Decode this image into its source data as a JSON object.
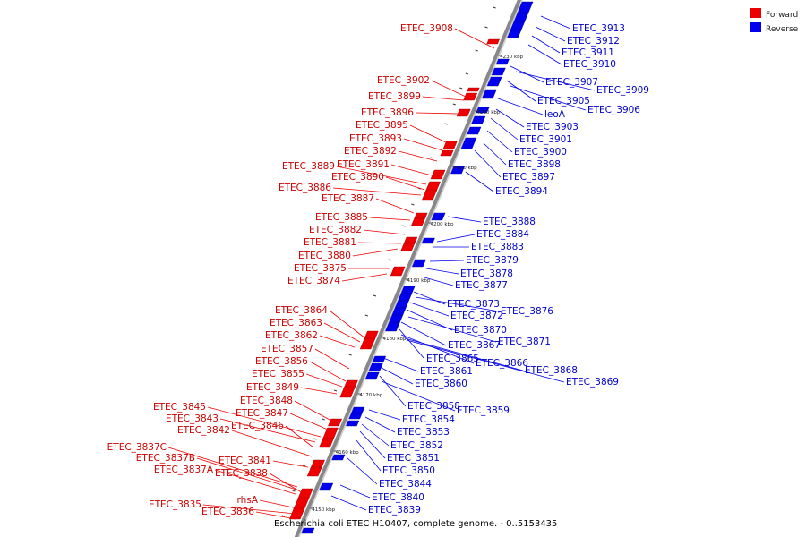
{
  "caption": "Escherichia coli ETEC H10407, complete genome. - 0..5153435",
  "legend": [
    {
      "name": "Forward",
      "color": "#ee0000"
    },
    {
      "name": "Reverse",
      "color": "#0000ee"
    }
  ],
  "colors": {
    "forward": "#ee0000",
    "reverse": "#0000ee",
    "backbone": "#888888"
  },
  "ticks": [
    "4150 kbp",
    "4160 kbp",
    "4170 kbp",
    "4180 kbp",
    "4190 kbp",
    "4200 kbp",
    "4210 kbp",
    "4220 kbp",
    "4230 kbp"
  ],
  "forward_genes": [
    "ETEC_3908",
    "ETEC_3902",
    "ETEC_3899",
    "ETEC_3896",
    "ETEC_3895",
    "ETEC_3893",
    "ETEC_3892",
    "ETEC_3891",
    "ETEC_3889",
    "ETEC_3890",
    "ETEC_3886",
    "ETEC_3887",
    "ETEC_3885",
    "ETEC_3882",
    "ETEC_3881",
    "ETEC_3880",
    "ETEC_3875",
    "ETEC_3874",
    "ETEC_3864",
    "ETEC_3863",
    "ETEC_3862",
    "ETEC_3857",
    "ETEC_3856",
    "ETEC_3855",
    "ETEC_3849",
    "ETEC_3848",
    "ETEC_3847",
    "ETEC_3845",
    "ETEC_3843",
    "ETEC_3846",
    "ETEC_3842",
    "ETEC_3841",
    "ETEC_3837C",
    "ETEC_3837B",
    "ETEC_3838",
    "ETEC_3837A",
    "rhsA",
    "ETEC_3835",
    "ETEC_3836"
  ],
  "reverse_genes": [
    "ETEC_3913",
    "ETEC_3912",
    "ETEC_3911",
    "ETEC_3910",
    "ETEC_3907",
    "ETEC_3909",
    "ETEC_3905",
    "ETEC_3906",
    "leoA",
    "ETEC_3903",
    "ETEC_3901",
    "ETEC_3900",
    "ETEC_3898",
    "ETEC_3897",
    "ETEC_3894",
    "ETEC_3888",
    "ETEC_3884",
    "ETEC_3883",
    "ETEC_3879",
    "ETEC_3878",
    "ETEC_3877",
    "ETEC_3873",
    "ETEC_3876",
    "ETEC_3872",
    "ETEC_3870",
    "ETEC_3871",
    "ETEC_3867",
    "ETEC_3865",
    "ETEC_3866",
    "ETEC_3868",
    "ETEC_3869",
    "ETEC_3861",
    "ETEC_3860",
    "ETEC_3858",
    "ETEC_3859",
    "ETEC_3854",
    "ETEC_3853",
    "ETEC_3852",
    "ETEC_3851",
    "ETEC_3850",
    "ETEC_3844",
    "ETEC_3840",
    "ETEC_3839"
  ]
}
